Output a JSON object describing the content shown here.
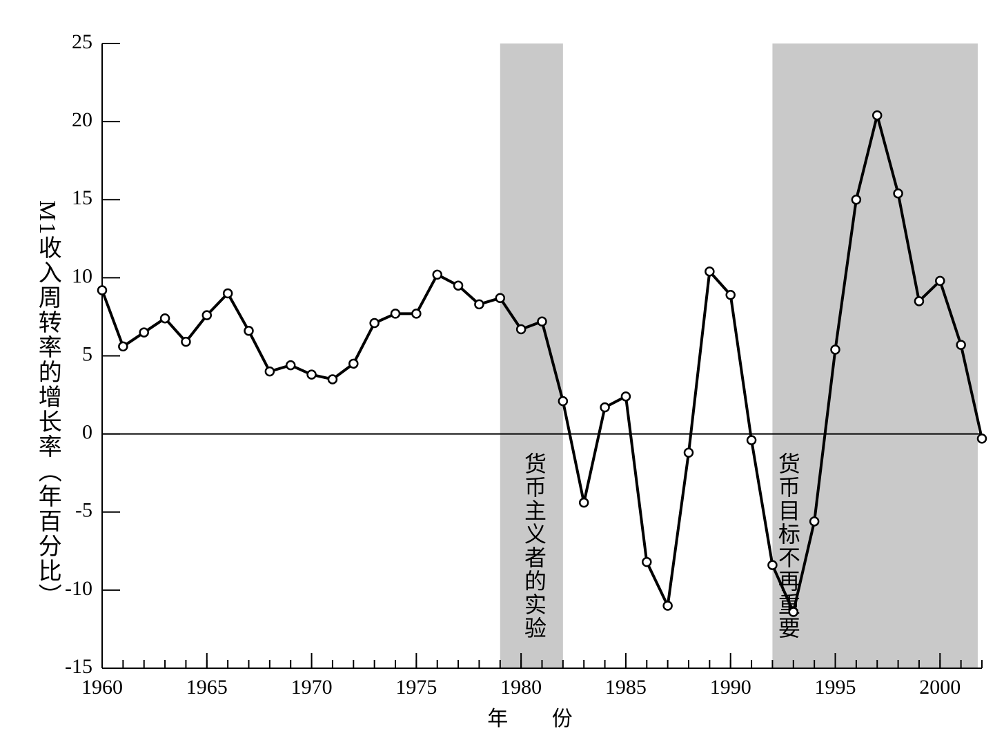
{
  "chart_data": {
    "type": "line",
    "xlabel": "年 份",
    "ylabel": "M1收入周转率的增长率（年百分比）",
    "x": [
      1960,
      1961,
      1962,
      1963,
      1964,
      1965,
      1966,
      1967,
      1968,
      1969,
      1970,
      1971,
      1972,
      1973,
      1974,
      1975,
      1976,
      1977,
      1978,
      1979,
      1980,
      1981,
      1982,
      1983,
      1984,
      1985,
      1986,
      1987,
      1988,
      1989,
      1990,
      1991,
      1992,
      1993,
      1994,
      1995,
      1996,
      1997,
      1998,
      1999,
      2000,
      2001,
      2002
    ],
    "series": [
      {
        "color": "#000000",
        "values": [
          9.2,
          5.6,
          6.5,
          7.4,
          5.9,
          7.6,
          9.0,
          6.6,
          4.0,
          4.4,
          3.8,
          3.5,
          4.5,
          7.1,
          7.7,
          7.7,
          10.2,
          9.5,
          8.3,
          8.7,
          6.7,
          7.2,
          2.1,
          -4.4,
          1.7,
          2.4,
          -8.2,
          -11.0,
          -1.2,
          10.4,
          8.9,
          -0.4,
          -8.4,
          -11.4,
          -5.6,
          5.4,
          15.0,
          20.4,
          15.4,
          8.5,
          9.8,
          5.7,
          -0.3
        ]
      }
    ],
    "shaded_regions": [
      {
        "start": 1979,
        "end": 1982,
        "label": "货币主义者的实验",
        "color": "#c9c9c9"
      },
      {
        "start": 1992,
        "end": 2001.8,
        "label": "货币目标不再重要",
        "color": "#c9c9c9"
      }
    ],
    "xlim": [
      1960,
      2002
    ],
    "xticks": [
      1960,
      1965,
      1970,
      1975,
      1980,
      1985,
      1990,
      1995,
      2000
    ],
    "ylim": [
      -15,
      25
    ],
    "yticks": [
      -15,
      -10,
      -5,
      0,
      5,
      10,
      15,
      20,
      25
    ],
    "zero_line": true
  }
}
